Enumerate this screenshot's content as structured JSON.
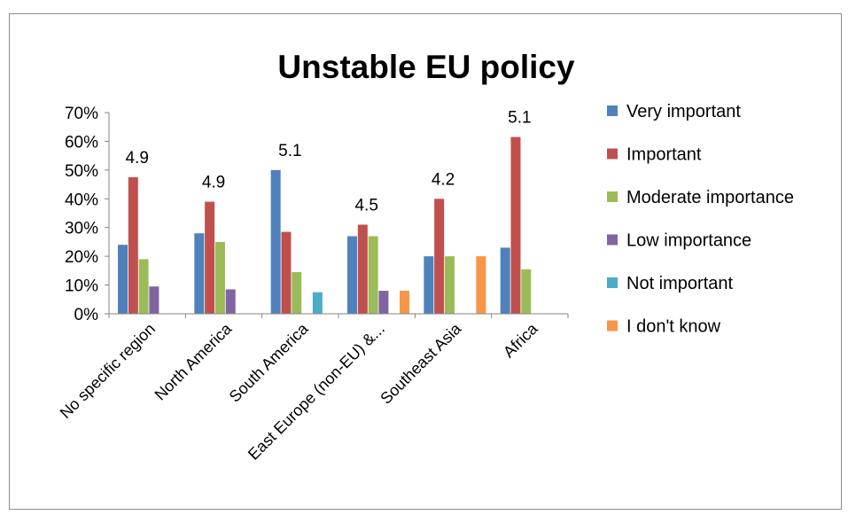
{
  "chart_data": {
    "type": "bar",
    "title": "Unstable EU policy",
    "xlabel": "",
    "ylabel": "",
    "ylim": [
      0,
      0.7
    ],
    "yticks": [
      "0%",
      "10%",
      "20%",
      "30%",
      "40%",
      "50%",
      "60%",
      "70%"
    ],
    "grid": false,
    "legend_position": "right",
    "categories": [
      "No specific region",
      "North America",
      "South America",
      "East Europe (non-EU) &...",
      "Southeast Asia",
      "Africa"
    ],
    "series": [
      {
        "name": "Very important",
        "color": "#4f81bd",
        "values": [
          0.24,
          0.28,
          0.5,
          0.27,
          0.2,
          0.23
        ]
      },
      {
        "name": "Important",
        "color": "#c0504d",
        "values": [
          0.475,
          0.39,
          0.285,
          0.31,
          0.4,
          0.615
        ]
      },
      {
        "name": "Moderate importance",
        "color": "#9bbb59",
        "values": [
          0.19,
          0.25,
          0.145,
          0.27,
          0.2,
          0.155
        ]
      },
      {
        "name": "Low importance",
        "color": "#8064a2",
        "values": [
          0.095,
          0.085,
          0,
          0.08,
          0,
          0
        ]
      },
      {
        "name": "Not important",
        "color": "#4bacc6",
        "values": [
          0,
          0,
          0.075,
          0,
          0,
          0
        ]
      },
      {
        "name": "I don't know",
        "color": "#f79646",
        "values": [
          0,
          0,
          0,
          0.08,
          0.2,
          0
        ]
      }
    ],
    "annotations": [
      "4.9",
      "4.9",
      "5.1",
      "4.5",
      "4.2",
      "5.1"
    ]
  }
}
